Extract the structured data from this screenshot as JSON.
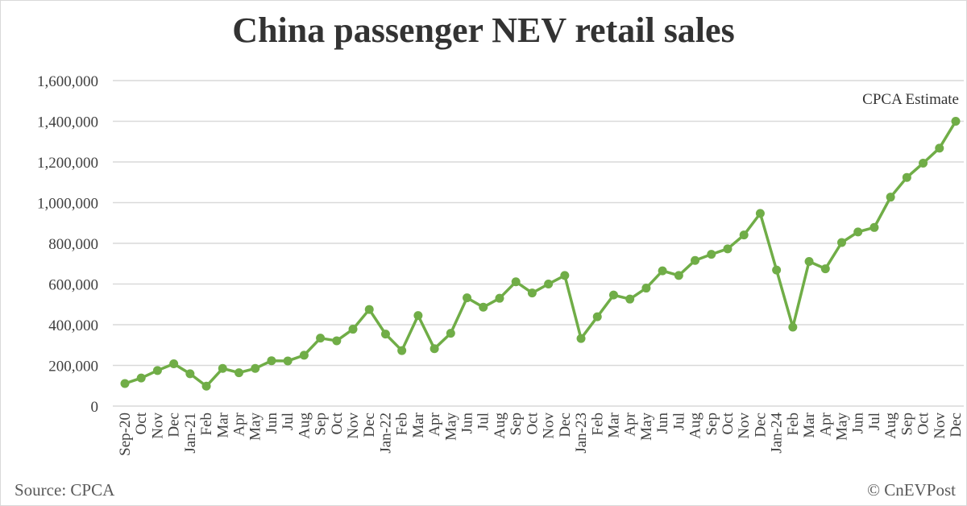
{
  "chart_data": {
    "type": "line",
    "title": "China passenger NEV retail sales",
    "xlabel": "",
    "ylabel": "",
    "ylim": [
      0,
      1600000
    ],
    "yticks": [
      0,
      200000,
      400000,
      600000,
      800000,
      1000000,
      1200000,
      1400000,
      1600000
    ],
    "ytick_labels": [
      "0",
      "200,000",
      "400,000",
      "600,000",
      "800,000",
      "1,000,000",
      "1,200,000",
      "1,400,000",
      "1,600,000"
    ],
    "grid": "horizontal",
    "line_color": "#70ad47",
    "categories": [
      "Sep-20",
      "Oct",
      "Nov",
      "Dec",
      "Jan-21",
      "Feb",
      "Mar",
      "Apr",
      "May",
      "Jun",
      "Jul",
      "Aug",
      "Sep",
      "Oct",
      "Nov",
      "Dec",
      "Jan-22",
      "Feb",
      "Mar",
      "Apr",
      "May",
      "Jun",
      "Jul",
      "Aug",
      "Sep",
      "Oct",
      "Nov",
      "Dec",
      "Jan-23",
      "Feb",
      "Mar",
      "Apr",
      "May",
      "Jun",
      "Jul",
      "Aug",
      "Sep",
      "Oct",
      "Nov",
      "Dec",
      "Jan-24",
      "Feb",
      "Mar",
      "Apr",
      "May",
      "Jun",
      "Jul",
      "Aug",
      "Sep",
      "Oct",
      "Nov",
      "Dec"
    ],
    "values": [
      111000,
      138000,
      175000,
      208000,
      159000,
      98000,
      185000,
      164000,
      185000,
      223000,
      222000,
      250000,
      334000,
      321000,
      378000,
      475000,
      354000,
      273000,
      445000,
      282000,
      358000,
      532000,
      486000,
      530000,
      611000,
      556000,
      600000,
      642000,
      332000,
      439000,
      546000,
      526000,
      580000,
      665000,
      642000,
      716000,
      746000,
      773000,
      841000,
      947000,
      669000,
      388000,
      711000,
      675000,
      804000,
      856000,
      878000,
      1027000,
      1124000,
      1194000,
      1268000,
      1400000
    ],
    "annotation": "CPCA Estimate"
  },
  "footer": {
    "source": "Source: CPCA",
    "credit": "© CnEVPost"
  }
}
